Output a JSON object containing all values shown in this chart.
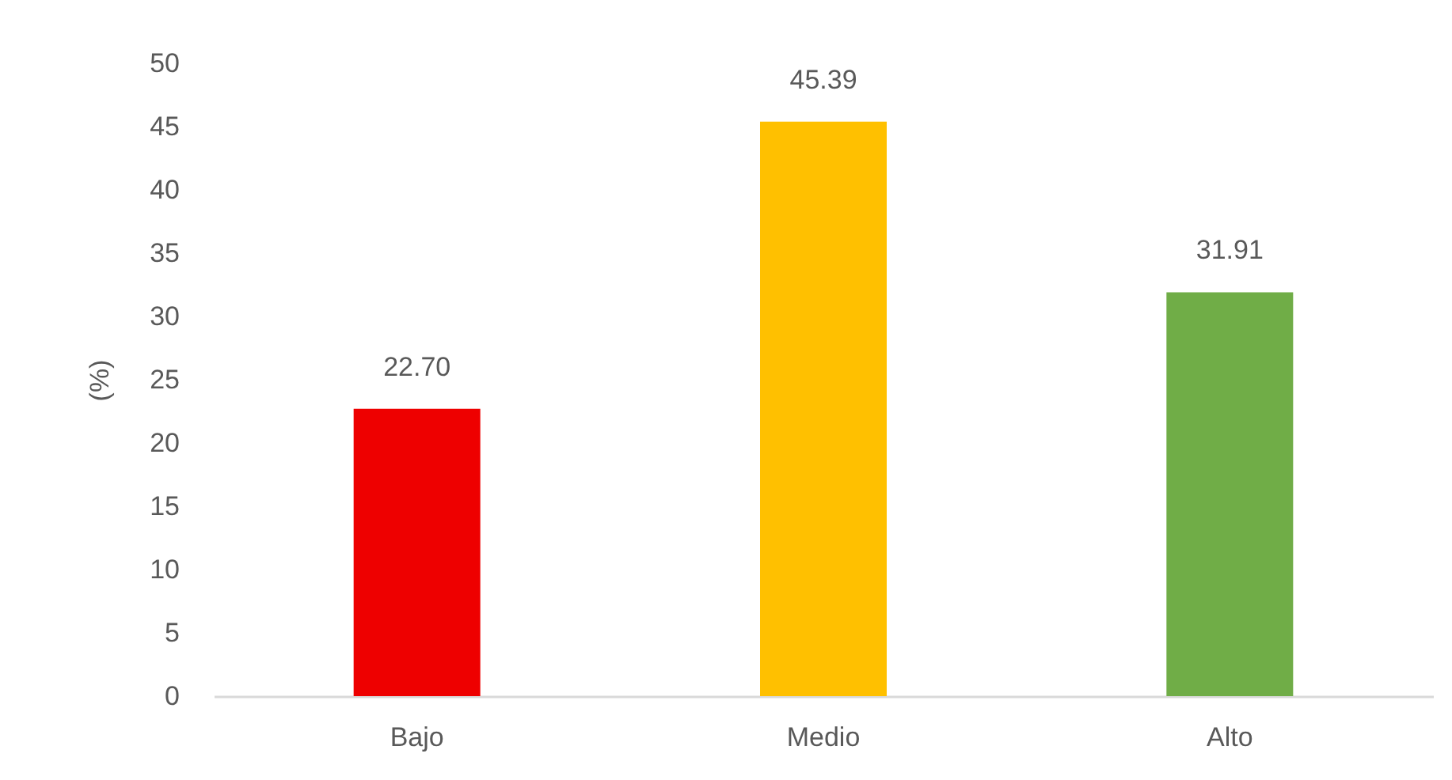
{
  "chart_data": {
    "type": "bar",
    "categories": [
      "Bajo",
      "Medio",
      "Alto"
    ],
    "values": [
      22.7,
      45.39,
      31.91
    ],
    "colors": [
      "#ee0000",
      "#ffc000",
      "#70ad47"
    ],
    "value_labels": [
      "22.70",
      "45.39",
      "31.91"
    ],
    "ylabel": "(%)",
    "ylim": [
      0,
      50
    ],
    "yticks": [
      0,
      5,
      10,
      15,
      20,
      25,
      30,
      35,
      40,
      45,
      50
    ],
    "grid": false
  }
}
